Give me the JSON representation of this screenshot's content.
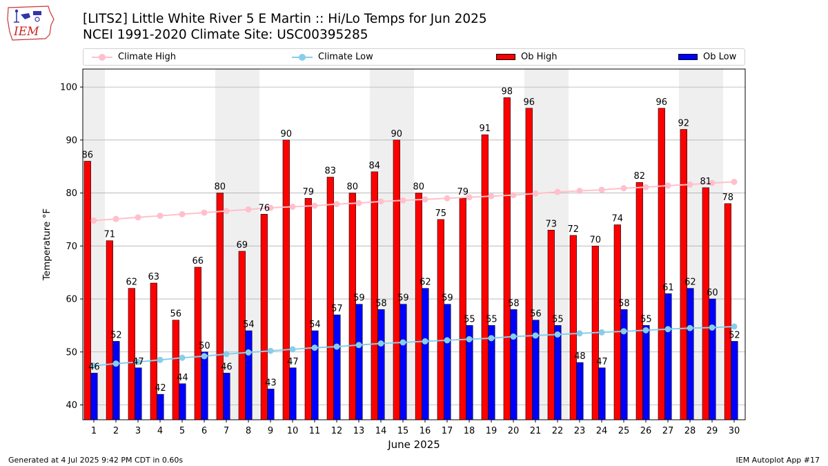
{
  "header": {
    "logo_text": "IEM",
    "title_line1": "[LITS2] Little White River 5 E Martin :: Hi/Lo Temps for Jun 2025",
    "title_line2": "NCEI 1991-2020 Climate Site: USC00395285"
  },
  "legend": {
    "climate_high": "Climate High",
    "climate_low": "Climate Low",
    "ob_high": "Ob High",
    "ob_low": "Ob Low"
  },
  "colors": {
    "climate_high": "#ffc0cb",
    "climate_low": "#87ceeb",
    "ob_high": "#ff0000",
    "ob_low": "#0000ff",
    "weekend_band": "#efefef",
    "grid": "#b0b0b0"
  },
  "chart_data": {
    "type": "bar",
    "xlabel": "June 2025",
    "ylabel": "Temperature °F",
    "ylim": [
      37.2,
      103.4
    ],
    "yticks": [
      40,
      50,
      60,
      70,
      80,
      90,
      100
    ],
    "grid": "horizontal",
    "legend_position": "top",
    "categories": [
      "1",
      "2",
      "3",
      "4",
      "5",
      "6",
      "7",
      "8",
      "9",
      "10",
      "11",
      "12",
      "13",
      "14",
      "15",
      "16",
      "17",
      "18",
      "19",
      "20",
      "21",
      "22",
      "23",
      "24",
      "25",
      "26",
      "27",
      "28",
      "29",
      "30"
    ],
    "shaded_days": [
      1,
      7,
      8,
      14,
      15,
      21,
      22,
      28,
      29
    ],
    "series": [
      {
        "name": "Ob High",
        "kind": "bar",
        "color": "#ff0000",
        "values": [
          86,
          71,
          62,
          63,
          56,
          66,
          80,
          69,
          76,
          90,
          79,
          83,
          80,
          84,
          90,
          80,
          75,
          79,
          91,
          98,
          96,
          73,
          72,
          70,
          74,
          82,
          96,
          92,
          81,
          78
        ]
      },
      {
        "name": "Ob Low",
        "kind": "bar",
        "color": "#0000ff",
        "values": [
          46,
          52,
          47,
          42,
          44,
          50,
          46,
          54,
          43,
          47,
          54,
          57,
          59,
          58,
          59,
          62,
          59,
          55,
          55,
          58,
          56,
          55,
          48,
          47,
          58,
          55,
          61,
          62,
          60,
          52
        ]
      },
      {
        "name": "Climate High",
        "kind": "line",
        "color": "#ffc0cb",
        "values": [
          74.8,
          75.1,
          75.4,
          75.7,
          76.0,
          76.3,
          76.6,
          76.9,
          77.2,
          77.4,
          77.6,
          77.9,
          78.1,
          78.4,
          78.6,
          78.8,
          79.0,
          79.2,
          79.4,
          79.6,
          79.9,
          80.2,
          80.4,
          80.6,
          80.9,
          81.1,
          81.4,
          81.6,
          81.9,
          82.1
        ]
      },
      {
        "name": "Climate Low",
        "kind": "line",
        "color": "#87ceeb",
        "values": [
          47.4,
          47.8,
          48.1,
          48.5,
          48.9,
          49.2,
          49.6,
          49.9,
          50.2,
          50.5,
          50.8,
          51.0,
          51.3,
          51.6,
          51.8,
          52.0,
          52.2,
          52.4,
          52.6,
          52.9,
          53.1,
          53.3,
          53.5,
          53.7,
          53.9,
          54.1,
          54.3,
          54.5,
          54.6,
          54.8
        ]
      }
    ]
  },
  "footer": {
    "generated": "Generated at 4 Jul 2025 9:42 PM CDT in 0.60s",
    "app": "IEM Autoplot App #17"
  }
}
